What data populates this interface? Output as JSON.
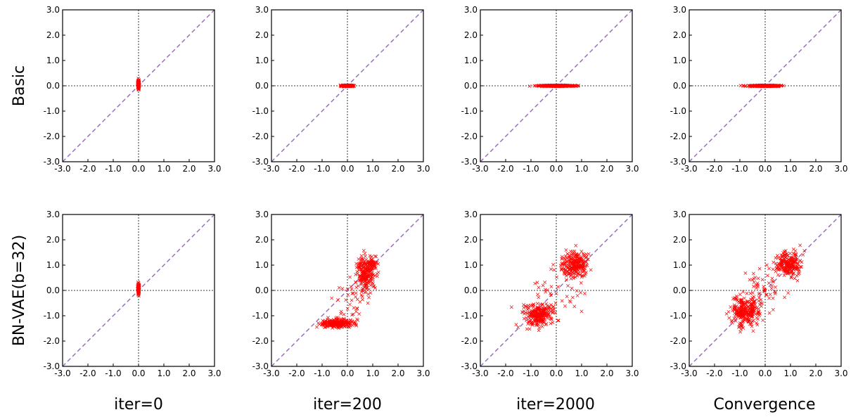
{
  "figure": {
    "row_labels": [
      "Basic",
      "BN-VAE(b=32)"
    ],
    "column_labels": [
      "iter=0",
      "iter=200",
      "iter=2000",
      "Convergence"
    ],
    "colors": {
      "points": "#ff0000",
      "diagonal": "#9467bd",
      "axes": "#000000",
      "guides": "#000000"
    }
  },
  "chart_data": [
    {
      "type": "scatter",
      "row": "Basic",
      "column": "iter=0",
      "xlim": [
        -3,
        3
      ],
      "ylim": [
        -3,
        3
      ],
      "xticks": [
        "-3.0",
        "-2.0",
        "-1.0",
        "0.0",
        "1.0",
        "2.0",
        "3.0"
      ],
      "yticks": [
        "-3.0",
        "-2.0",
        "-1.0",
        "0.0",
        "1.0",
        "2.0",
        "3.0"
      ],
      "reference_lines": [
        "y=x",
        "x=0",
        "y=0"
      ],
      "marker": "x",
      "grid": false,
      "clusters": [
        {
          "cx": 0.0,
          "cy": 0.05,
          "sx": 0.015,
          "sy": 0.08,
          "n": 120
        }
      ]
    },
    {
      "type": "scatter",
      "row": "Basic",
      "column": "iter=200",
      "xlim": [
        -3,
        3
      ],
      "ylim": [
        -3,
        3
      ],
      "xticks": [
        "-3.0",
        "-2.0",
        "-1.0",
        "0.0",
        "1.0",
        "2.0",
        "3.0"
      ],
      "yticks": [
        "-3.0",
        "-2.0",
        "-1.0",
        "0.0",
        "1.0",
        "2.0",
        "3.0"
      ],
      "reference_lines": [
        "y=x",
        "x=0",
        "y=0"
      ],
      "marker": "x",
      "grid": false,
      "clusters": [
        {
          "cx": 0.0,
          "cy": 0.0,
          "sx": 0.1,
          "sy": 0.012,
          "n": 260
        }
      ]
    },
    {
      "type": "scatter",
      "row": "Basic",
      "column": "iter=2000",
      "xlim": [
        -3,
        3
      ],
      "ylim": [
        -3,
        3
      ],
      "xticks": [
        "-3.0",
        "-2.0",
        "-1.0",
        "0.0",
        "1.0",
        "2.0",
        "3.0"
      ],
      "yticks": [
        "-3.0",
        "-2.0",
        "-1.0",
        "0.0",
        "1.0",
        "2.0",
        "3.0"
      ],
      "reference_lines": [
        "y=x",
        "x=0",
        "y=0"
      ],
      "marker": "x",
      "grid": false,
      "clusters": [
        {
          "cx": 0.0,
          "cy": 0.0,
          "sx": 0.35,
          "sy": 0.01,
          "n": 380
        }
      ]
    },
    {
      "type": "scatter",
      "row": "Basic",
      "column": "Convergence",
      "xlim": [
        -3,
        3
      ],
      "ylim": [
        -3,
        3
      ],
      "xticks": [
        "-3.0",
        "-2.0",
        "-1.0",
        "0.0",
        "1.0",
        "2.0",
        "3.0"
      ],
      "yticks": [
        "-3.0",
        "-2.0",
        "-1.0",
        "0.0",
        "1.0",
        "2.0",
        "3.0"
      ],
      "reference_lines": [
        "y=x",
        "x=0",
        "y=0"
      ],
      "marker": "x",
      "grid": false,
      "clusters": [
        {
          "cx": 0.0,
          "cy": 0.0,
          "sx": 0.3,
          "sy": 0.01,
          "n": 340
        }
      ]
    },
    {
      "type": "scatter",
      "row": "BN-VAE(b=32)",
      "column": "iter=0",
      "xlim": [
        -3,
        3
      ],
      "ylim": [
        -3,
        3
      ],
      "xticks": [
        "-3.0",
        "-2.0",
        "-1.0",
        "0.0",
        "1.0",
        "2.0",
        "3.0"
      ],
      "yticks": [
        "-3.0",
        "-2.0",
        "-1.0",
        "0.0",
        "1.0",
        "2.0",
        "3.0"
      ],
      "reference_lines": [
        "y=x",
        "x=0",
        "y=0"
      ],
      "marker": "x",
      "grid": false,
      "clusters": [
        {
          "cx": 0.0,
          "cy": 0.05,
          "sx": 0.015,
          "sy": 0.09,
          "n": 120
        }
      ]
    },
    {
      "type": "scatter",
      "row": "BN-VAE(b=32)",
      "column": "iter=200",
      "xlim": [
        -3,
        3
      ],
      "ylim": [
        -3,
        3
      ],
      "xticks": [
        "-3.0",
        "-2.0",
        "-1.0",
        "0.0",
        "1.0",
        "2.0",
        "3.0"
      ],
      "yticks": [
        "-3.0",
        "-2.0",
        "-1.0",
        "0.0",
        "1.0",
        "2.0",
        "3.0"
      ],
      "reference_lines": [
        "y=x",
        "x=0",
        "y=0"
      ],
      "marker": "x",
      "grid": false,
      "clusters": [
        {
          "cx": -0.45,
          "cy": -1.3,
          "sx": 0.28,
          "sy": 0.08,
          "n": 230
        },
        {
          "cx": 0.7,
          "cy": 0.6,
          "sx": 0.18,
          "sy": 0.35,
          "n": 200
        },
        {
          "cx": 0.95,
          "cy": 1.05,
          "sx": 0.12,
          "sy": 0.12,
          "n": 60
        },
        {
          "cx": 0.2,
          "cy": -0.5,
          "sx": 0.25,
          "sy": 0.5,
          "n": 40
        }
      ]
    },
    {
      "type": "scatter",
      "row": "BN-VAE(b=32)",
      "column": "iter=2000",
      "xlim": [
        -3,
        3
      ],
      "ylim": [
        -3,
        3
      ],
      "xticks": [
        "-3.0",
        "-2.0",
        "-1.0",
        "0.0",
        "1.0",
        "2.0",
        "3.0"
      ],
      "yticks": [
        "-3.0",
        "-2.0",
        "-1.0",
        "0.0",
        "1.0",
        "2.0",
        "3.0"
      ],
      "reference_lines": [
        "y=x",
        "x=0",
        "y=0"
      ],
      "marker": "x",
      "grid": false,
      "clusters": [
        {
          "cx": -0.75,
          "cy": -0.95,
          "sx": 0.3,
          "sy": 0.22,
          "n": 260
        },
        {
          "cx": 0.75,
          "cy": 1.0,
          "sx": 0.28,
          "sy": 0.25,
          "n": 230
        },
        {
          "cx": 0.0,
          "cy": 0.0,
          "sx": 0.55,
          "sy": 0.6,
          "n": 40
        }
      ]
    },
    {
      "type": "scatter",
      "row": "BN-VAE(b=32)",
      "column": "Convergence",
      "xlim": [
        -3,
        3
      ],
      "ylim": [
        -3,
        3
      ],
      "xticks": [
        "-3.0",
        "-2.0",
        "-1.0",
        "0.0",
        "1.0",
        "2.0",
        "3.0"
      ],
      "yticks": [
        "-3.0",
        "-2.0",
        "-1.0",
        "0.0",
        "1.0",
        "2.0",
        "3.0"
      ],
      "reference_lines": [
        "y=x",
        "x=0",
        "y=0"
      ],
      "marker": "x",
      "grid": false,
      "clusters": [
        {
          "cx": -0.8,
          "cy": -0.85,
          "sx": 0.28,
          "sy": 0.28,
          "n": 260
        },
        {
          "cx": 0.9,
          "cy": 1.05,
          "sx": 0.25,
          "sy": 0.25,
          "n": 220
        },
        {
          "cx": 0.0,
          "cy": 0.05,
          "sx": 0.4,
          "sy": 0.4,
          "n": 50
        }
      ]
    }
  ]
}
